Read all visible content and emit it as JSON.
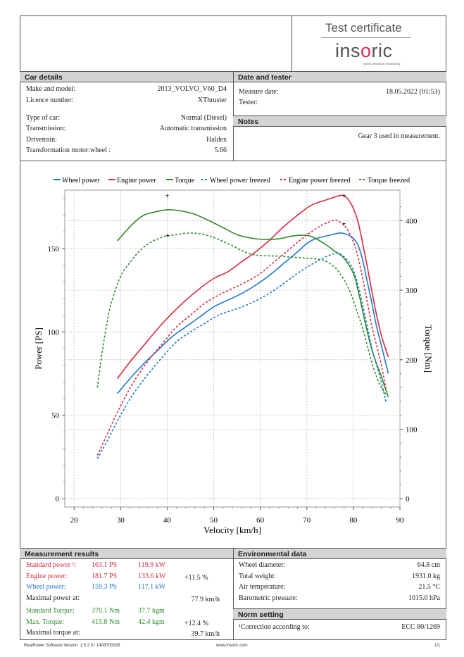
{
  "header": {
    "logo_title": "Test certificate",
    "logo_word_before": "ins",
    "logo_word_o": "o",
    "logo_word_after": "ric",
    "logo_tagline": "swiss precision measuring",
    "brand_accent": "#e52b50"
  },
  "car_details": {
    "heading": "Car details",
    "make_label": "Make and model:",
    "make_value": "2013_VOLVO_V60_D4",
    "licence_label": "Licence number:",
    "licence_value": "XThruster",
    "type_label": "Type of car:",
    "type_value": "Normal (Diesel)",
    "transmission_label": "Transmission:",
    "transmission_value": "Automatic transmission",
    "drivetrain_label": "Drivetrain:",
    "drivetrain_value": "Haldex",
    "ratio_label": "Transformation motor:wheel :",
    "ratio_value": "5.66"
  },
  "date_tester": {
    "heading": "Date and tester",
    "date_label": "Measure date:",
    "date_value": "18.05.2022 (01:53)",
    "tester_label": "Tester:",
    "tester_value": ""
  },
  "notes": {
    "heading": "Notes",
    "text": "Gear 3 used in measurement."
  },
  "chart_data": {
    "type": "line",
    "title": "",
    "xlabel": "Velocity [km/h]",
    "ylabel": "Power [PS]",
    "y2label": "Torque [Nm]",
    "xlim": [
      18,
      90
    ],
    "ylim": [
      -5,
      185
    ],
    "y2lim": [
      -12,
      444
    ],
    "x_ticks": [
      20,
      30,
      40,
      50,
      60,
      70,
      80,
      90
    ],
    "y_ticks": [
      0,
      50,
      100,
      150
    ],
    "y2_ticks": [
      0,
      100,
      200,
      300,
      400
    ],
    "grid": true,
    "legend_position": "top",
    "series": [
      {
        "name": "Wheel power",
        "axis": "left",
        "color": "#1f77d4",
        "dash": false,
        "x": [
          29.3,
          32,
          35,
          38,
          41,
          44,
          47,
          50,
          53,
          56,
          59,
          62,
          65,
          68,
          70,
          72,
          75,
          77,
          78,
          79,
          80,
          81,
          82,
          83,
          84,
          85,
          86,
          87.5
        ],
        "y": [
          63,
          72,
          81,
          89,
          97,
          103,
          109,
          115,
          119,
          123,
          128,
          134,
          141,
          148,
          153,
          156,
          158,
          159.3,
          159,
          158,
          156,
          152,
          143,
          130,
          117,
          103,
          92,
          75
        ]
      },
      {
        "name": "Engine power",
        "axis": "left",
        "color": "#d62a3e",
        "dash": false,
        "x": [
          29.3,
          32,
          35,
          38,
          41,
          44,
          47,
          50,
          53,
          56,
          59,
          62,
          65,
          68,
          71,
          74,
          77,
          78,
          79,
          80,
          81,
          82,
          83,
          84,
          85,
          86,
          87.5
        ],
        "y": [
          72,
          82,
          92,
          102,
          111,
          119,
          126,
          132,
          136,
          142,
          148,
          155,
          163,
          170,
          176,
          179,
          181.7,
          181.5,
          179,
          174,
          166,
          153,
          139,
          124,
          110,
          98,
          85
        ]
      },
      {
        "name": "Torque",
        "axis": "right",
        "color": "#2e8b2e",
        "dash": false,
        "x": [
          29.3,
          31,
          33,
          35,
          37,
          40,
          43,
          46,
          49,
          52,
          55,
          58,
          61,
          64,
          67,
          70,
          72,
          74,
          76,
          78,
          80,
          81,
          82,
          83,
          84,
          85,
          86,
          87.5
        ],
        "y": [
          371,
          384,
          398,
          408,
          412,
          415.8,
          414,
          409,
          400,
          390,
          380,
          375,
          373,
          374,
          378,
          379,
          374,
          366,
          356,
          346,
          324,
          300,
          270,
          240,
          214,
          194,
          176,
          146
        ]
      },
      {
        "name": "Wheel power freezed",
        "axis": "left",
        "color": "#1f77d4",
        "dash": true,
        "x": [
          25,
          27,
          29,
          31,
          33,
          36,
          39,
          42,
          45,
          48,
          51,
          54,
          57,
          60,
          63,
          66,
          69,
          72,
          74,
          76,
          77,
          78,
          79,
          80,
          81,
          82,
          83,
          84,
          85,
          86,
          87
        ],
        "y": [
          24,
          34,
          45,
          55,
          64,
          75,
          85,
          94,
          100,
          105,
          110,
          113,
          116,
          120,
          125,
          131,
          137,
          142,
          145,
          147,
          147,
          145,
          142,
          137,
          128,
          116,
          103,
          90,
          80,
          70,
          58
        ]
      },
      {
        "name": "Engine power freezed",
        "axis": "left",
        "color": "#d62a3e",
        "dash": true,
        "x": [
          25,
          27,
          29,
          31,
          33,
          36,
          39,
          42,
          45,
          48,
          51,
          54,
          57,
          60,
          63,
          66,
          69,
          72,
          74,
          76,
          77,
          78,
          79,
          80,
          81,
          82,
          83,
          84,
          85,
          86,
          87
        ],
        "y": [
          26,
          38,
          50,
          61,
          71,
          83,
          93,
          103,
          110,
          117,
          122,
          126,
          130,
          135,
          142,
          149,
          156,
          162,
          165,
          167,
          166,
          164,
          160,
          154,
          145,
          132,
          118,
          103,
          92,
          80,
          66
        ]
      },
      {
        "name": "Torque freezed",
        "axis": "right",
        "color": "#2e8b2e",
        "dash": true,
        "x": [
          25,
          26,
          27,
          28,
          30,
          32,
          34,
          36,
          38,
          40,
          42,
          44,
          46,
          48,
          50,
          52,
          54,
          56,
          58,
          60,
          64,
          68,
          72,
          74,
          76,
          77,
          78,
          79,
          80,
          81,
          82,
          83,
          84,
          85,
          86,
          87
        ],
        "y": [
          160,
          210,
          250,
          282,
          320,
          340,
          356,
          367,
          374,
          378,
          380,
          382,
          382,
          380,
          376,
          370,
          364,
          357,
          352,
          350,
          349,
          347,
          345,
          342,
          333,
          325,
          315,
          302,
          285,
          265,
          245,
          220,
          195,
          175,
          160,
          150
        ]
      }
    ],
    "markers": [
      {
        "x": 40,
        "y": 181.8,
        "axis": "left"
      },
      {
        "x": 40,
        "y": 158,
        "axis": "left"
      },
      {
        "x": 78,
        "y": 181.8,
        "axis": "left"
      },
      {
        "x": 78,
        "y": 165,
        "axis": "left"
      }
    ]
  },
  "measurement": {
    "heading": "Measurement results",
    "std_power_label": "Standard power ¹:",
    "std_power_ps": "163.1 PS",
    "std_power_kw": "119.9 kW",
    "eng_power_label": "Engine power:",
    "eng_power_ps": "181.7 PS",
    "eng_power_kw": "133.6 kW",
    "eng_power_pct": "+11.5 %",
    "wheel_power_label": "Wheel power:",
    "wheel_power_ps": "159.3 PS",
    "wheel_power_kw": "117.1 kW",
    "max_power_at_label": "Maximal power at:",
    "max_power_at_value": "77.9 km/h",
    "std_torque_label": "Standard Torque:",
    "std_torque_nm": "370.1 Nm",
    "std_torque_kgm": "37.7 kgm",
    "max_torque_label": "Max. Torque:",
    "max_torque_nm": "415.8 Nm",
    "max_torque_kgm": "42.4 kgm",
    "max_torque_pct": "+12.4 %",
    "max_torque_at_label": "Maximal torque at:",
    "max_torque_at_value": "39.7 km/h",
    "color_red": "#d62a3e",
    "color_blue": "#1f77d4",
    "color_green": "#2e8b2e"
  },
  "environment": {
    "heading": "Environmental data",
    "wheel_label": "Wheel diameter:",
    "wheel_value": "64.8 cm",
    "weight_label": "Total weight:",
    "weight_value": "1931.0 kg",
    "air_label": "Air temperature:",
    "air_value": "21.5 °C",
    "baro_label": "Barometric pressure:",
    "baro_value": "1015.0 hPa"
  },
  "norm": {
    "heading": "Norm setting",
    "label": "¹Correction according to:",
    "value": "ECC 80/1269"
  },
  "footer": {
    "software": "RealPower Software Version: 1.5.2.0 / 1408700326",
    "site": "www.insoric.com",
    "page": "1/1"
  }
}
